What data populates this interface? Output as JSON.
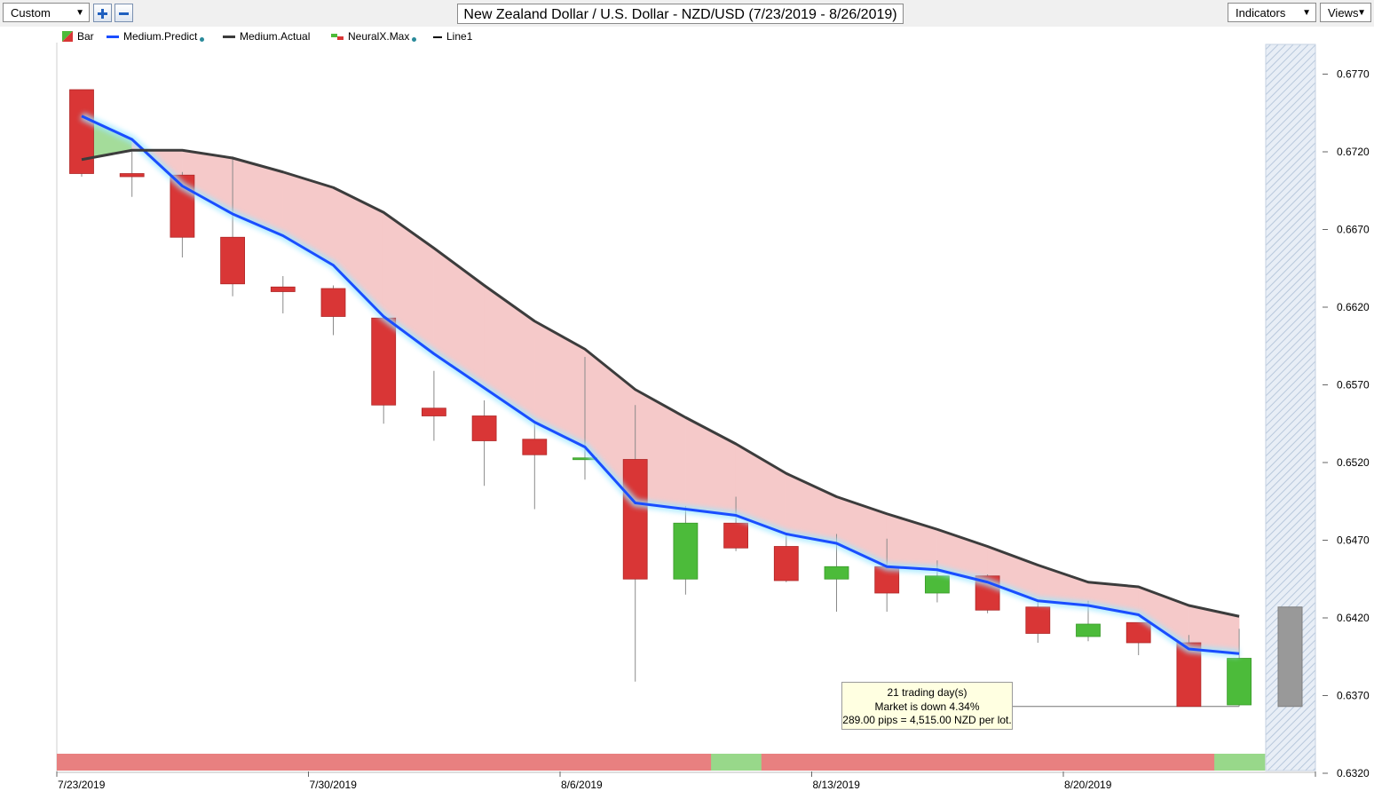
{
  "toolbar": {
    "preset_value": "Custom",
    "title": "New Zealand Dollar / U.S. Dollar - NZD/USD (7/23/2019 - 8/26/2019)",
    "indicators_label": "Indicators",
    "views_label": "Views"
  },
  "legend": [
    {
      "label": "Bar"
    },
    {
      "label": "Medium.Predict"
    },
    {
      "label": "Medium.Actual"
    },
    {
      "label": "NeuralX.Max"
    },
    {
      "label": "Line1"
    }
  ],
  "tooltip": {
    "line1": "21 trading day(s)",
    "line2": "Market is down 4.34%",
    "line3": "289.00 pips = 4,515.00 NZD per lot."
  },
  "colors": {
    "down": "#d93636",
    "up": "#4cbb3a",
    "predict": "#1a4dff",
    "actual": "#3c3c3c",
    "band_down": "#f5c9c9",
    "band_up": "#a4dc9a",
    "strip_down": "#e88080",
    "strip_up": "#98d88a"
  },
  "chart_data": {
    "type": "candlestick",
    "ylim": [
      0.632,
      0.6795
    ],
    "y_ticks": [
      "0.6770",
      "0.6720",
      "0.6670",
      "0.6620",
      "0.6570",
      "0.6520",
      "0.6470",
      "0.6420",
      "0.6370",
      "0.6320"
    ],
    "x_labels": [
      {
        "label": "7/23/2019",
        "index": 0
      },
      {
        "label": "7/30/2019",
        "index": 5
      },
      {
        "label": "8/6/2019",
        "index": 10
      },
      {
        "label": "8/13/2019",
        "index": 15
      },
      {
        "label": "8/20/2019",
        "index": 20
      }
    ],
    "candles": [
      {
        "open": 0.676,
        "high": 0.676,
        "low": 0.6704,
        "close": 0.6706
      },
      {
        "open": 0.6706,
        "high": 0.672,
        "low": 0.6691,
        "close": 0.6704
      },
      {
        "open": 0.6705,
        "high": 0.6707,
        "low": 0.6652,
        "close": 0.6665
      },
      {
        "open": 0.6665,
        "high": 0.6717,
        "low": 0.6627,
        "close": 0.6635
      },
      {
        "open": 0.6633,
        "high": 0.664,
        "low": 0.6616,
        "close": 0.663
      },
      {
        "open": 0.6632,
        "high": 0.6634,
        "low": 0.6602,
        "close": 0.6614
      },
      {
        "open": 0.6613,
        "high": 0.6615,
        "low": 0.6545,
        "close": 0.6557
      },
      {
        "open": 0.6555,
        "high": 0.6579,
        "low": 0.6534,
        "close": 0.655
      },
      {
        "open": 0.655,
        "high": 0.656,
        "low": 0.6505,
        "close": 0.6534
      },
      {
        "open": 0.6535,
        "high": 0.6545,
        "low": 0.649,
        "close": 0.6525
      },
      {
        "open": 0.6522,
        "high": 0.6588,
        "low": 0.6509,
        "close": 0.6523
      },
      {
        "open": 0.6522,
        "high": 0.6557,
        "low": 0.6379,
        "close": 0.6445
      },
      {
        "open": 0.6445,
        "high": 0.6492,
        "low": 0.6435,
        "close": 0.6481
      },
      {
        "open": 0.6481,
        "high": 0.6498,
        "low": 0.6463,
        "close": 0.6465
      },
      {
        "open": 0.6466,
        "high": 0.6473,
        "low": 0.6443,
        "close": 0.6444
      },
      {
        "open": 0.6445,
        "high": 0.6474,
        "low": 0.6424,
        "close": 0.6453
      },
      {
        "open": 0.6453,
        "high": 0.6471,
        "low": 0.6424,
        "close": 0.6436
      },
      {
        "open": 0.6436,
        "high": 0.6457,
        "low": 0.643,
        "close": 0.6447
      },
      {
        "open": 0.6447,
        "high": 0.6448,
        "low": 0.6423,
        "close": 0.6425
      },
      {
        "open": 0.6427,
        "high": 0.6432,
        "low": 0.6404,
        "close": 0.641
      },
      {
        "open": 0.6408,
        "high": 0.6431,
        "low": 0.6405,
        "close": 0.6416
      },
      {
        "open": 0.6417,
        "high": 0.6417,
        "low": 0.6396,
        "close": 0.6404
      },
      {
        "open": 0.6404,
        "high": 0.6409,
        "low": 0.6363,
        "close": 0.6363
      },
      {
        "open": 0.6364,
        "high": 0.6413,
        "low": 0.6363,
        "close": 0.6394
      }
    ],
    "medium_predict": [
      0.6743,
      0.6728,
      0.6698,
      0.668,
      0.6666,
      0.6647,
      0.6614,
      0.659,
      0.6568,
      0.6546,
      0.653,
      0.6494,
      0.649,
      0.6486,
      0.6474,
      0.6468,
      0.6453,
      0.6451,
      0.6443,
      0.6431,
      0.6428,
      0.6422,
      0.64,
      0.6397
    ],
    "medium_actual": [
      0.6715,
      0.6721,
      0.6721,
      0.6716,
      0.6707,
      0.6697,
      0.6681,
      0.6658,
      0.6634,
      0.6611,
      0.6593,
      0.6567,
      0.6549,
      0.6532,
      0.6513,
      0.6498,
      0.6487,
      0.6477,
      0.6466,
      0.6454,
      0.6443,
      0.644,
      0.6428,
      0.6421
    ],
    "line1_value": 0.6363,
    "line1_range": [
      16,
      23
    ],
    "neuralx_strip": [
      "down",
      "down",
      "down",
      "down",
      "down",
      "down",
      "down",
      "down",
      "down",
      "down",
      "down",
      "down",
      "down",
      "up",
      "down",
      "down",
      "down",
      "down",
      "down",
      "down",
      "down",
      "down",
      "down",
      "up"
    ],
    "forecast": {
      "open": 0.6427,
      "close": 0.6363
    }
  }
}
